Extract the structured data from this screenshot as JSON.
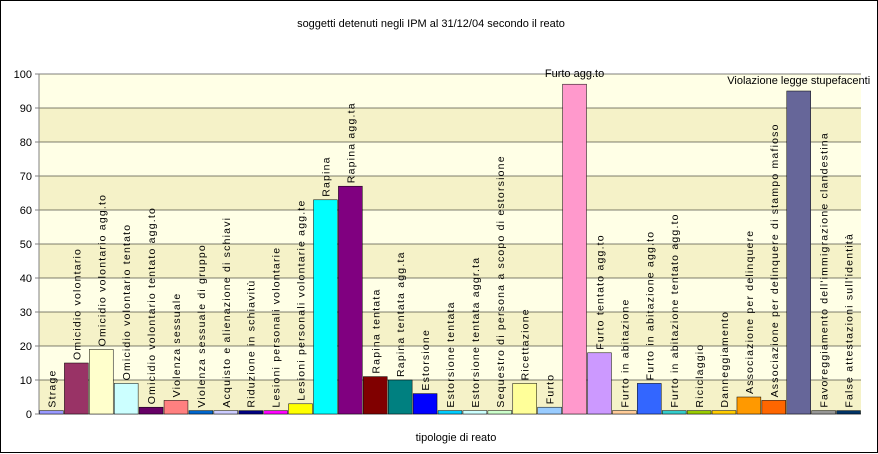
{
  "chart_data": {
    "type": "bar",
    "title": "soggetti detenuti negli IPM al 31/12/04 secondo il reato",
    "xlabel": "tipologie di reato",
    "ylabel": "",
    "ylim": [
      0,
      100
    ],
    "yticks": [
      0,
      10,
      20,
      30,
      40,
      50,
      60,
      70,
      80,
      90,
      100
    ],
    "grid": true,
    "categories": [
      "Strage",
      "Omicidio volontario",
      "Omicidio volontario agg.to",
      "Omicidio volontario tentato",
      "Omicidio volontario tentato agg.to",
      "Violenza sessuale",
      "Violenza sessuale di gruppo",
      "Acquisto e alienazione di schiavi",
      "Riduzione in schiavitù",
      "Lesioni personali volontarie",
      "Lesioni personali volontarie agg.te",
      "Rapina",
      "Rapina agg.ta",
      "Rapina tentata",
      "Rapina tentata agg.ta",
      "Estorsione",
      "Estorsione tentata",
      "Estorsione tentata aggr.ta",
      "Sequestro di persona a scopo di estorsione",
      "Ricettazione",
      "Furto",
      "Furto agg.to",
      "Furto tentato agg.to",
      "Furto in abitazione",
      "Furto in abitazione agg.to",
      "Furto in abitazione tentato agg.to",
      "Riciclaggio",
      "Danneggiamento",
      "Associazione per delinquere",
      "Associazione per delinquere di stampo mafioso",
      "Violazione legge stupefacenti",
      "Favoreggiamento dell'immigrazione clandestina",
      "False attestazioni sull'identità"
    ],
    "values": [
      1,
      15,
      19,
      9,
      2,
      4,
      1,
      1,
      1,
      1,
      3,
      63,
      67,
      11,
      10,
      6,
      1,
      1,
      1,
      9,
      2,
      97,
      18,
      1,
      9,
      1,
      1,
      1,
      5,
      4,
      95,
      1,
      1
    ],
    "colors": [
      "#9999FF",
      "#993366",
      "#FFFFCC",
      "#CCFFFF",
      "#660066",
      "#FF8080",
      "#0066CC",
      "#CCCCFF",
      "#000080",
      "#FF00FF",
      "#FFFF00",
      "#00FFFF",
      "#800080",
      "#800000",
      "#008080",
      "#0000FF",
      "#00CCFF",
      "#CCFFFF",
      "#CCFFCC",
      "#FFFF99",
      "#99CCFF",
      "#FF99CC",
      "#CC99FF",
      "#FFCC99",
      "#3366FF",
      "#33CCCC",
      "#99CC00",
      "#FFCC00",
      "#FF9900",
      "#FF6600",
      "#666699",
      "#969696",
      "#003366"
    ],
    "bar_labels": [
      {
        "index": 0,
        "text": "Strage"
      },
      {
        "index": 1,
        "text": "Omicidio volontario"
      },
      {
        "index": 2,
        "text": "Omicidio volontario agg.to"
      },
      {
        "index": 3,
        "text": "Omicidio volontario tentato"
      },
      {
        "index": 4,
        "text": "Omicidio volontario tentato agg.to"
      },
      {
        "index": 5,
        "text": "Violenza sessuale"
      },
      {
        "index": 6,
        "text": "Violenza sessuale di gruppo"
      },
      {
        "index": 7,
        "text": "Acquisto e alienazione di schiavi"
      },
      {
        "index": 8,
        "text": "Riduzione in schiavitù"
      },
      {
        "index": 9,
        "text": "Lesioni personali volontarie"
      },
      {
        "index": 10,
        "text": "Lesioni personali volontarie agg.te"
      },
      {
        "index": 11,
        "text": "Rapina"
      },
      {
        "index": 12,
        "text": "Rapina agg.ta"
      },
      {
        "index": 13,
        "text": "Rapina tentata"
      },
      {
        "index": 14,
        "text": "Rapina tentata agg.ta"
      },
      {
        "index": 15,
        "text": "Estorsione"
      },
      {
        "index": 16,
        "text": "Estorsione tentata"
      },
      {
        "index": 17,
        "text": "Estorsione tentata aggr.ta"
      },
      {
        "index": 18,
        "text": "Sequestro di persona a scopo di estorsione"
      },
      {
        "index": 19,
        "text": "Ricettazione"
      },
      {
        "index": 20,
        "text": "Furto"
      },
      {
        "index": 22,
        "text": "Furto tentato agg.to"
      },
      {
        "index": 23,
        "text": "Furto in abitazione"
      },
      {
        "index": 24,
        "text": "Furto in abitazione agg.to"
      },
      {
        "index": 25,
        "text": "Furto in abitazione tentato agg.to"
      },
      {
        "index": 26,
        "text": "Riciclaggio"
      },
      {
        "index": 27,
        "text": "Danneggiamento"
      },
      {
        "index": 28,
        "text": "Associazione per delinquere"
      },
      {
        "index": 29,
        "text": "Associazione per delinquere di stampo mafioso"
      },
      {
        "index": 31,
        "text": "Favoreggiamento dell'immigrazione clandestina"
      },
      {
        "index": 32,
        "text": "False attestazioni sull'identità"
      }
    ],
    "annotations": [
      {
        "index": 21,
        "text": "Furto agg.to"
      },
      {
        "index": 30,
        "text": "Violazione legge stupefacenti"
      }
    ],
    "plot_colors": {
      "band_light": "#FFFFE6",
      "band_dark": "#F5F2C8",
      "gridline": "#000000",
      "axis": "#808080"
    }
  }
}
